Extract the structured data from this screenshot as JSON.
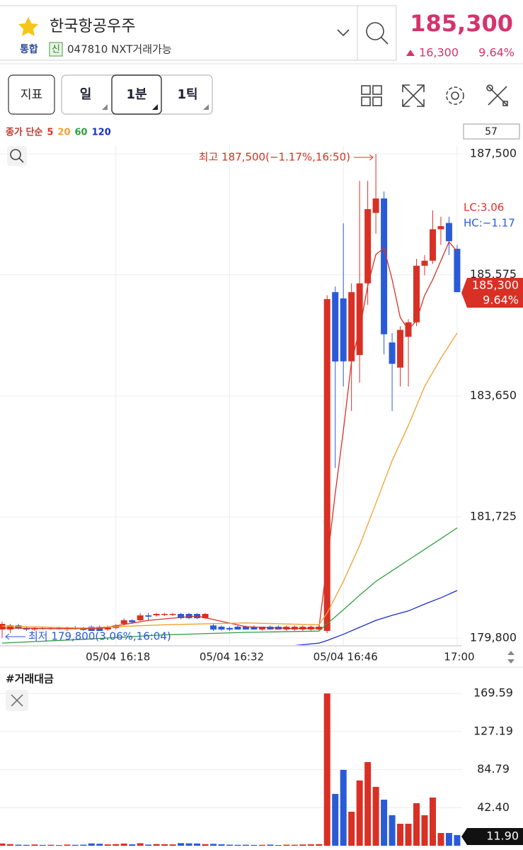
{
  "header": {
    "name": "한국항공우주",
    "market": "통합",
    "badge": "신",
    "code": "047810 NXT거래가능",
    "price": "185,300",
    "change": "16,300",
    "change_pct": "9.64%"
  },
  "toolbar": {
    "indicator": "지표",
    "periods": [
      "일",
      "1분",
      "1틱"
    ]
  },
  "chart_data": [
    {
      "type": "candlestick",
      "legend_label": "종가 단순",
      "count": "57",
      "up_color": "#d93025",
      "down_color": "#2a5bd7",
      "x": [
        4,
        5,
        6,
        7,
        8,
        9,
        10,
        11,
        12,
        13,
        14,
        15,
        16,
        17,
        18,
        19,
        20,
        21,
        22,
        23,
        24,
        25,
        26,
        27,
        28,
        29,
        30,
        31,
        32,
        33,
        34,
        35,
        36,
        37,
        38,
        39,
        40,
        41,
        42,
        43,
        44,
        45,
        46,
        47,
        48,
        49,
        50,
        51,
        52,
        53,
        54,
        55,
        56,
        57,
        58,
        59,
        60
      ],
      "open": [
        179935,
        179935,
        180000,
        179960,
        179935,
        179960,
        179945,
        179960,
        179940,
        179960,
        179945,
        179980,
        179980,
        179935,
        179960,
        180025,
        180082,
        180082,
        180160,
        180160,
        180170,
        180170,
        180183,
        180183,
        180183,
        180116,
        180000,
        179980,
        179960,
        179980,
        179980,
        179980,
        179935,
        179980,
        179980,
        179935,
        179935,
        179935,
        179935,
        179935,
        179913,
        185300,
        185200,
        184200,
        184300,
        185440,
        186560,
        186790,
        184500,
        184100,
        184590,
        184820,
        185720,
        185800,
        186300,
        186400,
        185990
      ],
      "high": [
        180060,
        180025,
        180025,
        179980,
        179980,
        179980,
        179980,
        179980,
        179980,
        179990,
        179980,
        180000,
        180000,
        180000,
        180025,
        180116,
        180100,
        180200,
        180200,
        180200,
        180200,
        180200,
        180200,
        180200,
        180200,
        180200,
        180025,
        180000,
        179980,
        180000,
        180000,
        180000,
        179980,
        180000,
        180000,
        180000,
        180000,
        180000,
        180000,
        180000,
        185250,
        185390,
        186395,
        185440,
        187070,
        187070,
        187500,
        186900,
        184650,
        184760,
        184870,
        185830,
        185890,
        186600,
        186500,
        186500,
        186050
      ],
      "low": [
        179800,
        179880,
        179935,
        179913,
        179913,
        179935,
        179935,
        179935,
        179913,
        179935,
        179913,
        179913,
        179913,
        179913,
        179935,
        180000,
        180025,
        180070,
        180070,
        180140,
        180150,
        180150,
        180100,
        180100,
        180100,
        180100,
        179913,
        179913,
        179913,
        179935,
        179935,
        179935,
        179913,
        179935,
        179935,
        179913,
        179913,
        179913,
        179913,
        179913,
        179880,
        182506,
        183802,
        183410,
        183860,
        185100,
        186230,
        184310,
        183410,
        183800,
        183800,
        184760,
        185570,
        185750,
        186050,
        185890,
        185300
      ],
      "close": [
        180025,
        180000,
        179960,
        179935,
        179960,
        179945,
        179960,
        179940,
        179960,
        179945,
        179935,
        179913,
        179913,
        179980,
        180000,
        180082,
        180050,
        180160,
        180140,
        180183,
        180183,
        180183,
        180116,
        180116,
        180116,
        180183,
        179935,
        179935,
        179935,
        179935,
        179935,
        179935,
        179980,
        179935,
        179935,
        179980,
        179980,
        179980,
        179980,
        179980,
        185190,
        184197,
        184200,
        185300,
        185440,
        186620,
        186790,
        184630,
        184160,
        184700,
        184820,
        185720,
        185800,
        186300,
        186350,
        186110,
        185300
      ],
      "series": [
        {
          "name": "5",
          "color": "#d93025",
          "x": [
            4,
            10,
            16,
            22,
            28,
            34,
            40,
            43,
            44,
            45,
            46,
            47,
            48,
            49,
            50,
            51,
            52,
            53,
            54,
            55,
            56,
            57,
            58,
            59,
            60
          ],
          "values": [
            179960,
            179950,
            179950,
            180080,
            180150,
            179980,
            179950,
            179960,
            181000,
            182100,
            183100,
            184200,
            184700,
            185400,
            185900,
            186000,
            185500,
            184900,
            184700,
            184850,
            185250,
            185500,
            185800,
            186100,
            185950
          ]
        },
        {
          "name": "20",
          "color": "#f0a030",
          "x": [
            4,
            14,
            24,
            34,
            43,
            44,
            46,
            48,
            50,
            52,
            54,
            56,
            58,
            60
          ],
          "values": [
            179990,
            179960,
            180010,
            180040,
            180010,
            180195,
            180700,
            181270,
            181940,
            182620,
            183180,
            183800,
            184250,
            184650
          ]
        },
        {
          "name": "60",
          "color": "#2e9e3e",
          "x": [
            4,
            14,
            24,
            34,
            43,
            44,
            46,
            48,
            50,
            52,
            54,
            56,
            58,
            60
          ],
          "values": [
            179720,
            179780,
            179850,
            179890,
            179910,
            180025,
            180250,
            180480,
            180700,
            180870,
            181040,
            181210,
            181380,
            181550
          ]
        },
        {
          "name": "120",
          "color": "#1a2fbf",
          "x": [
            34,
            40,
            43,
            44,
            46,
            48,
            50,
            52,
            54,
            56,
            58,
            60
          ],
          "values": [
            179650,
            179680,
            179720,
            179760,
            179860,
            179970,
            180080,
            180160,
            180230,
            180340,
            180440,
            180555
          ]
        }
      ],
      "xlim": [
        3.74,
        60.53
      ],
      "xticks": [
        {
          "value": 18,
          "label": "05/04 16:18"
        },
        {
          "value": 32,
          "label": "05/04 16:32"
        },
        {
          "value": 46,
          "label": "05/04 16:46"
        },
        {
          "value": 60,
          "label": "17:00"
        }
      ],
      "ylim": [
        179687,
        187635
      ],
      "yticks": [
        {
          "value": 179800,
          "label": "179,800"
        },
        {
          "value": 181725,
          "label": "181,725"
        },
        {
          "value": 183650,
          "label": "183,650"
        },
        {
          "value": 185575,
          "label": "185,575"
        },
        {
          "value": 187500,
          "label": "187,500"
        }
      ],
      "grid": true,
      "high_label": "최고 187,500(−1.17%,16:50)",
      "low_label": "최저 179,800(3.06%,16:04)",
      "lc_label": "LC:3.06",
      "hc_label": "HC:−1.17",
      "last_price": {
        "value": 185300,
        "label": "185,300"
      },
      "last_change_label": "9.64%"
    },
    {
      "type": "bar",
      "title": "#거래대금",
      "x": [
        4,
        5,
        6,
        7,
        8,
        9,
        10,
        11,
        12,
        13,
        14,
        15,
        16,
        17,
        18,
        19,
        20,
        21,
        22,
        23,
        24,
        25,
        26,
        27,
        28,
        29,
        30,
        31,
        32,
        33,
        34,
        35,
        36,
        37,
        38,
        39,
        40,
        41,
        42,
        43,
        44,
        45,
        46,
        47,
        48,
        49,
        50,
        51,
        52,
        53,
        54,
        55,
        56,
        57,
        58,
        59,
        60
      ],
      "values": [
        2.5,
        1.8,
        1.2,
        1.0,
        1.4,
        0.9,
        1.1,
        0.8,
        1.3,
        1.0,
        1.2,
        2.6,
        2.2,
        1.5,
        1.8,
        2.4,
        1.6,
        2.8,
        1.3,
        1.9,
        1.7,
        1.5,
        2.9,
        2.7,
        2.5,
        1.8,
        2.1,
        1.6,
        1.2,
        1.0,
        1.1,
        0.9,
        1.0,
        1.3,
        0.8,
        1.2,
        1.1,
        1.4,
        1.6,
        1.8,
        169.59,
        57.7,
        84.5,
        37.9,
        72.7,
        93.2,
        65.6,
        51.3,
        34,
        24.5,
        24.5,
        47.4,
        34,
        53.7,
        14.2,
        14.2,
        11.9
      ],
      "xlim": [
        3.74,
        60.53
      ],
      "ylim": [
        0,
        180
      ],
      "yticks": [
        {
          "value": 42.4,
          "label": "42.40"
        },
        84.79,
        127.19,
        169.59
      ],
      "grid": true,
      "last_label": "11.90"
    }
  ]
}
